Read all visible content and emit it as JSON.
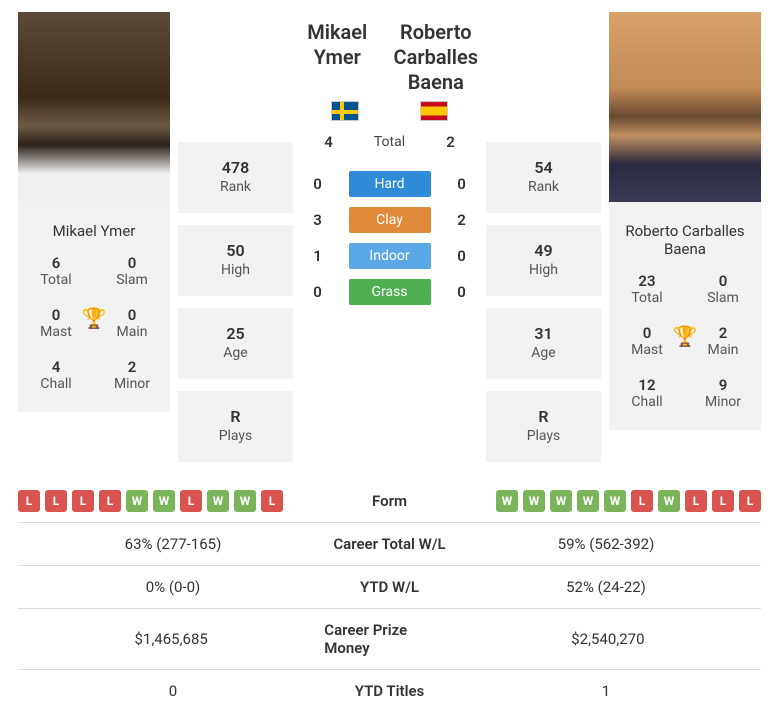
{
  "player1": {
    "name": "Mikael Ymer",
    "flag": "se",
    "rank": "478",
    "high": "50",
    "age": "25",
    "plays": "R",
    "titles": {
      "total": "6",
      "slam": "0",
      "mast": "0",
      "main": "0",
      "chall": "4",
      "minor": "2"
    }
  },
  "player2": {
    "name": "Roberto Carballes Baena",
    "flag": "es",
    "rank": "54",
    "high": "49",
    "age": "31",
    "plays": "R",
    "titles": {
      "total": "23",
      "slam": "0",
      "mast": "0",
      "main": "2",
      "chall": "12",
      "minor": "9"
    }
  },
  "h2h": {
    "total_label": "Total",
    "p1_total": "4",
    "p2_total": "2",
    "surfaces": [
      {
        "label": "Hard",
        "p1": "0",
        "p2": "0",
        "color": "#2f8bd8"
      },
      {
        "label": "Clay",
        "p1": "3",
        "p2": "2",
        "color": "#e08a3c"
      },
      {
        "label": "Indoor",
        "p1": "1",
        "p2": "0",
        "color": "#5aa9e6"
      },
      {
        "label": "Grass",
        "p1": "0",
        "p2": "0",
        "color": "#4fae4f"
      }
    ]
  },
  "labels": {
    "rank": "Rank",
    "high": "High",
    "age": "Age",
    "plays": "Plays",
    "total": "Total",
    "slam": "Slam",
    "mast": "Mast",
    "main": "Main",
    "chall": "Chall",
    "minor": "Minor",
    "form": "Form",
    "career_wl": "Career Total W/L",
    "ytd_wl": "YTD W/L",
    "prize": "Career Prize Money",
    "ytd_titles": "YTD Titles"
  },
  "form": {
    "p1": [
      "L",
      "L",
      "L",
      "L",
      "W",
      "W",
      "L",
      "W",
      "W",
      "L"
    ],
    "p2": [
      "W",
      "W",
      "W",
      "W",
      "W",
      "L",
      "W",
      "L",
      "L",
      "L"
    ]
  },
  "compare": {
    "career_wl": {
      "p1": "63% (277-165)",
      "p2": "59% (562-392)"
    },
    "ytd_wl": {
      "p1": "0% (0-0)",
      "p2": "52% (24-22)"
    },
    "prize": {
      "p1": "$1,465,685",
      "p2": "$2,540,270"
    },
    "ytd_titles": {
      "p1": "0",
      "p2": "1"
    }
  },
  "colors": {
    "win": "#7ab55c",
    "loss": "#d9534f",
    "panel_bg": "#f2f2f2",
    "trophy": "#3b8dd1"
  }
}
